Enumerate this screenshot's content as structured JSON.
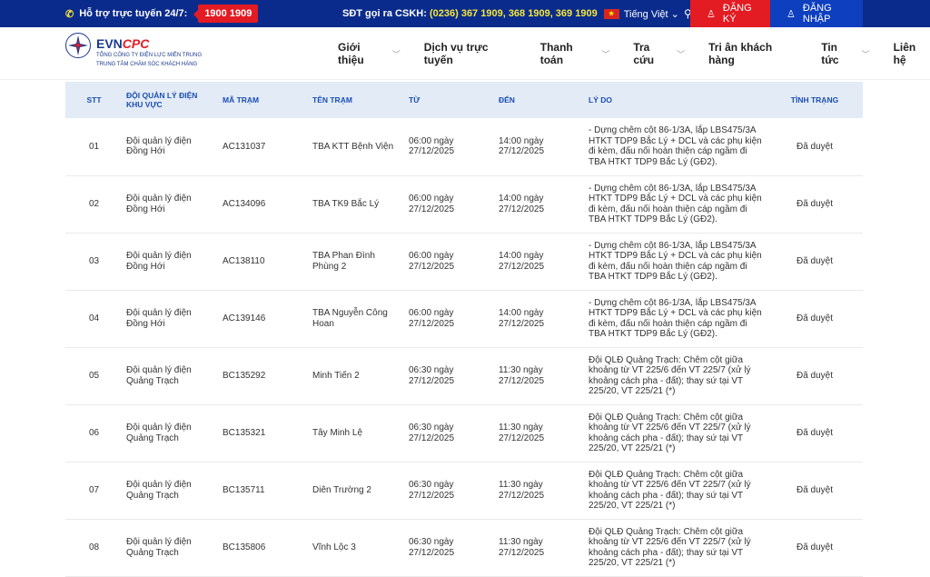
{
  "topbar": {
    "support_label": "Hỗ trợ trực tuyến 24/7:",
    "hotline": "1900 1909",
    "cskh_label": "SĐT gọi ra CSKH:",
    "cskh_numbers": "(0236) 367 1909, 368 1909, 369 1909",
    "language": "Tiếng Việt",
    "register": "ĐĂNG KÝ",
    "login": "ĐĂNG NHẬP"
  },
  "brand": {
    "name_a": "EVN",
    "name_b": "CPC",
    "line1": "TỔNG CÔNG TY ĐIỆN LỰC MIỀN TRUNG",
    "line2": "TRUNG TÂM CHĂM SÓC KHÁCH HÀNG"
  },
  "nav": [
    "Giới thiệu",
    "Dịch vụ trực tuyến",
    "Thanh toán",
    "Tra cứu",
    "Tri ân khách hàng",
    "Tin tức",
    "Liên hệ"
  ],
  "table": {
    "headers": [
      "STT",
      "ĐỘI QUẢN LÝ ĐIỆN KHU VỰC",
      "MÃ TRẠM",
      "TÊN TRẠM",
      "TỪ",
      "ĐẾN",
      "LÝ DO",
      "TÌNH TRẠNG"
    ],
    "rows": [
      [
        "01",
        "Đội quản lý điện Đồng Hới",
        "AC131037",
        "TBA KTT Bệnh Viện",
        "06:00 ngày 27/12/2025",
        "14:00 ngày 27/12/2025",
        "- Dựng chêm cột 86-1/3A, lắp LBS475/3A HTKT TDP9 Bắc Lý + DCL và các phụ kiện đi kèm, đấu nối hoàn thiện cáp ngầm đi TBA HTKT TDP9 Bắc Lý (GĐ2).",
        "Đã duyệt"
      ],
      [
        "02",
        "Đội quản lý điện Đồng Hới",
        "AC134096",
        "TBA TK9 Bắc Lý",
        "06:00 ngày 27/12/2025",
        "14:00 ngày 27/12/2025",
        "- Dựng chêm cột 86-1/3A, lắp LBS475/3A HTKT TDP9 Bắc Lý + DCL và các phụ kiện đi kèm, đấu nối hoàn thiện cáp ngầm đi TBA HTKT TDP9 Bắc Lý (GĐ2).",
        "Đã duyệt"
      ],
      [
        "03",
        "Đội quản lý điện Đồng Hới",
        "AC138110",
        "TBA Phan Đình Phùng 2",
        "06:00 ngày 27/12/2025",
        "14:00 ngày 27/12/2025",
        "- Dựng chêm cột 86-1/3A, lắp LBS475/3A HTKT TDP9 Bắc Lý + DCL và các phụ kiện đi kèm, đấu nối hoàn thiện cáp ngầm đi TBA HTKT TDP9 Bắc Lý (GĐ2).",
        "Đã duyệt"
      ],
      [
        "04",
        "Đội quản lý điện Đồng Hới",
        "AC139146",
        "TBA Nguyễn Công Hoan",
        "06:00 ngày 27/12/2025",
        "14:00 ngày 27/12/2025",
        "- Dựng chêm cột 86-1/3A, lắp LBS475/3A HTKT TDP9 Bắc Lý + DCL và các phụ kiện đi kèm, đấu nối hoàn thiện cáp ngầm đi TBA HTKT TDP9 Bắc Lý (GĐ2).",
        "Đã duyệt"
      ],
      [
        "05",
        "Đội quản lý điện Quảng Trạch",
        "BC135292",
        "Minh Tiến 2",
        "06:30 ngày 27/12/2025",
        "11:30 ngày 27/12/2025",
        "Đội QLĐ Quảng Trạch: Chêm cột giữa khoảng từ VT 225/6 đến VT 225/7 (xử lý khoảng cách pha - đất); thay sứ tại VT 225/20, VT 225/21 (*)",
        "Đã duyệt"
      ],
      [
        "06",
        "Đội quản lý điện Quảng Trạch",
        "BC135321",
        "Tây Minh Lệ",
        "06:30 ngày 27/12/2025",
        "11:30 ngày 27/12/2025",
        "Đội QLĐ Quảng Trạch: Chêm cột giữa khoảng từ VT 225/6 đến VT 225/7 (xử lý khoảng cách pha - đất); thay sứ tại VT 225/20, VT 225/21 (*)",
        "Đã duyệt"
      ],
      [
        "07",
        "Đội quản lý điện Quảng Trạch",
        "BC135711",
        "Diên Trường 2",
        "06:30 ngày 27/12/2025",
        "11:30 ngày 27/12/2025",
        "Đội QLĐ Quảng Trạch: Chêm cột giữa khoảng từ VT 225/6 đến VT 225/7 (xử lý khoảng cách pha - đất); thay sứ tại VT 225/20, VT 225/21 (*)",
        "Đã duyệt"
      ],
      [
        "08",
        "Đội quản lý điện Quảng Trạch",
        "BC135806",
        "Vĩnh Lộc 3",
        "06:30 ngày 27/12/2025",
        "11:30 ngày 27/12/2025",
        "Đội QLĐ Quảng Trạch: Chêm cột giữa khoảng từ VT 225/6 đến VT 225/7 (xử lý khoảng cách pha - đất); thay sứ tại VT 225/20, VT 225/21 (*)",
        "Đã duyệt"
      ]
    ]
  }
}
